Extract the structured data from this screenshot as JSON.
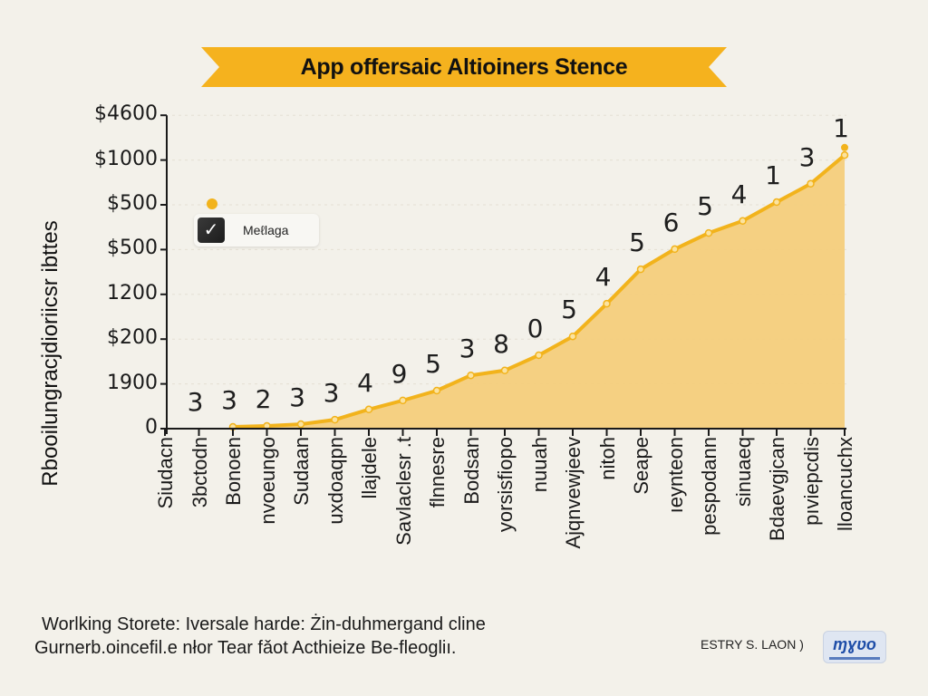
{
  "banner": {
    "title": "App offersaic Altioiners Stence",
    "color": "#f5b21e"
  },
  "legend": {
    "label": "Meℓlaga",
    "icon": "checkmark-icon"
  },
  "footer": {
    "line1": "Worlking Storete: Iversale harde: Żin-duhmergand cline",
    "line2": "Gurnerb.oincefil.e nłor Tear fǎot Acthieize Be-fleogliı."
  },
  "credit": {
    "text": "ESTRY S. LAON  )",
    "logo_text": "ɱɣʋo"
  },
  "chart_data": {
    "type": "area",
    "title": "App offersaic Altioiners Stence",
    "xlabel": "",
    "ylabel": "Rbooilungracjdioriicsr ibttes",
    "y_ticks": [
      "0",
      "1900",
      "$200",
      "1200",
      "$500",
      "$500",
      "$1000",
      "$4600"
    ],
    "y_range_tick_units": [
      0,
      7
    ],
    "grid": true,
    "legend": {
      "entries": [
        "Meℓlaga"
      ],
      "position": "top-left"
    },
    "colors": {
      "line": "#f2b31c",
      "fill": "#f4cd7c",
      "axis": "#1a1a1a"
    },
    "categories": [
      "Siudacn",
      "3bctodn",
      "Bonoen",
      "nvoeungo",
      "Sudaan",
      "uxdoaqpn",
      "llajdele",
      "Savlaclesr .t",
      "flnnesre",
      "Bodsan",
      "yorsisfiopo",
      "nuuah",
      "Ajqnvewjeev",
      "nitoh",
      "Seape",
      "ıeynteon",
      "pespodann",
      "sinuaeq",
      "Bdaevgjcan",
      "pıviepcdis",
      "lloancuchx"
    ],
    "series": [
      {
        "name": "Meℓlaga",
        "values": [
          null,
          null,
          0.04,
          0.06,
          0.1,
          0.2,
          0.43,
          0.63,
          0.85,
          1.19,
          1.3,
          1.64,
          2.06,
          2.79,
          3.56,
          4.01,
          4.37,
          4.64,
          5.06,
          5.47,
          6.11
        ],
        "end_marker_value": 6.28
      }
    ],
    "data_labels": [
      "",
      "3",
      "3",
      "2",
      "3",
      "3",
      "4",
      "9",
      "5",
      "3",
      "8",
      "0",
      "5",
      "4",
      "5",
      "6",
      "5",
      "4",
      "1",
      "3",
      "1"
    ]
  }
}
